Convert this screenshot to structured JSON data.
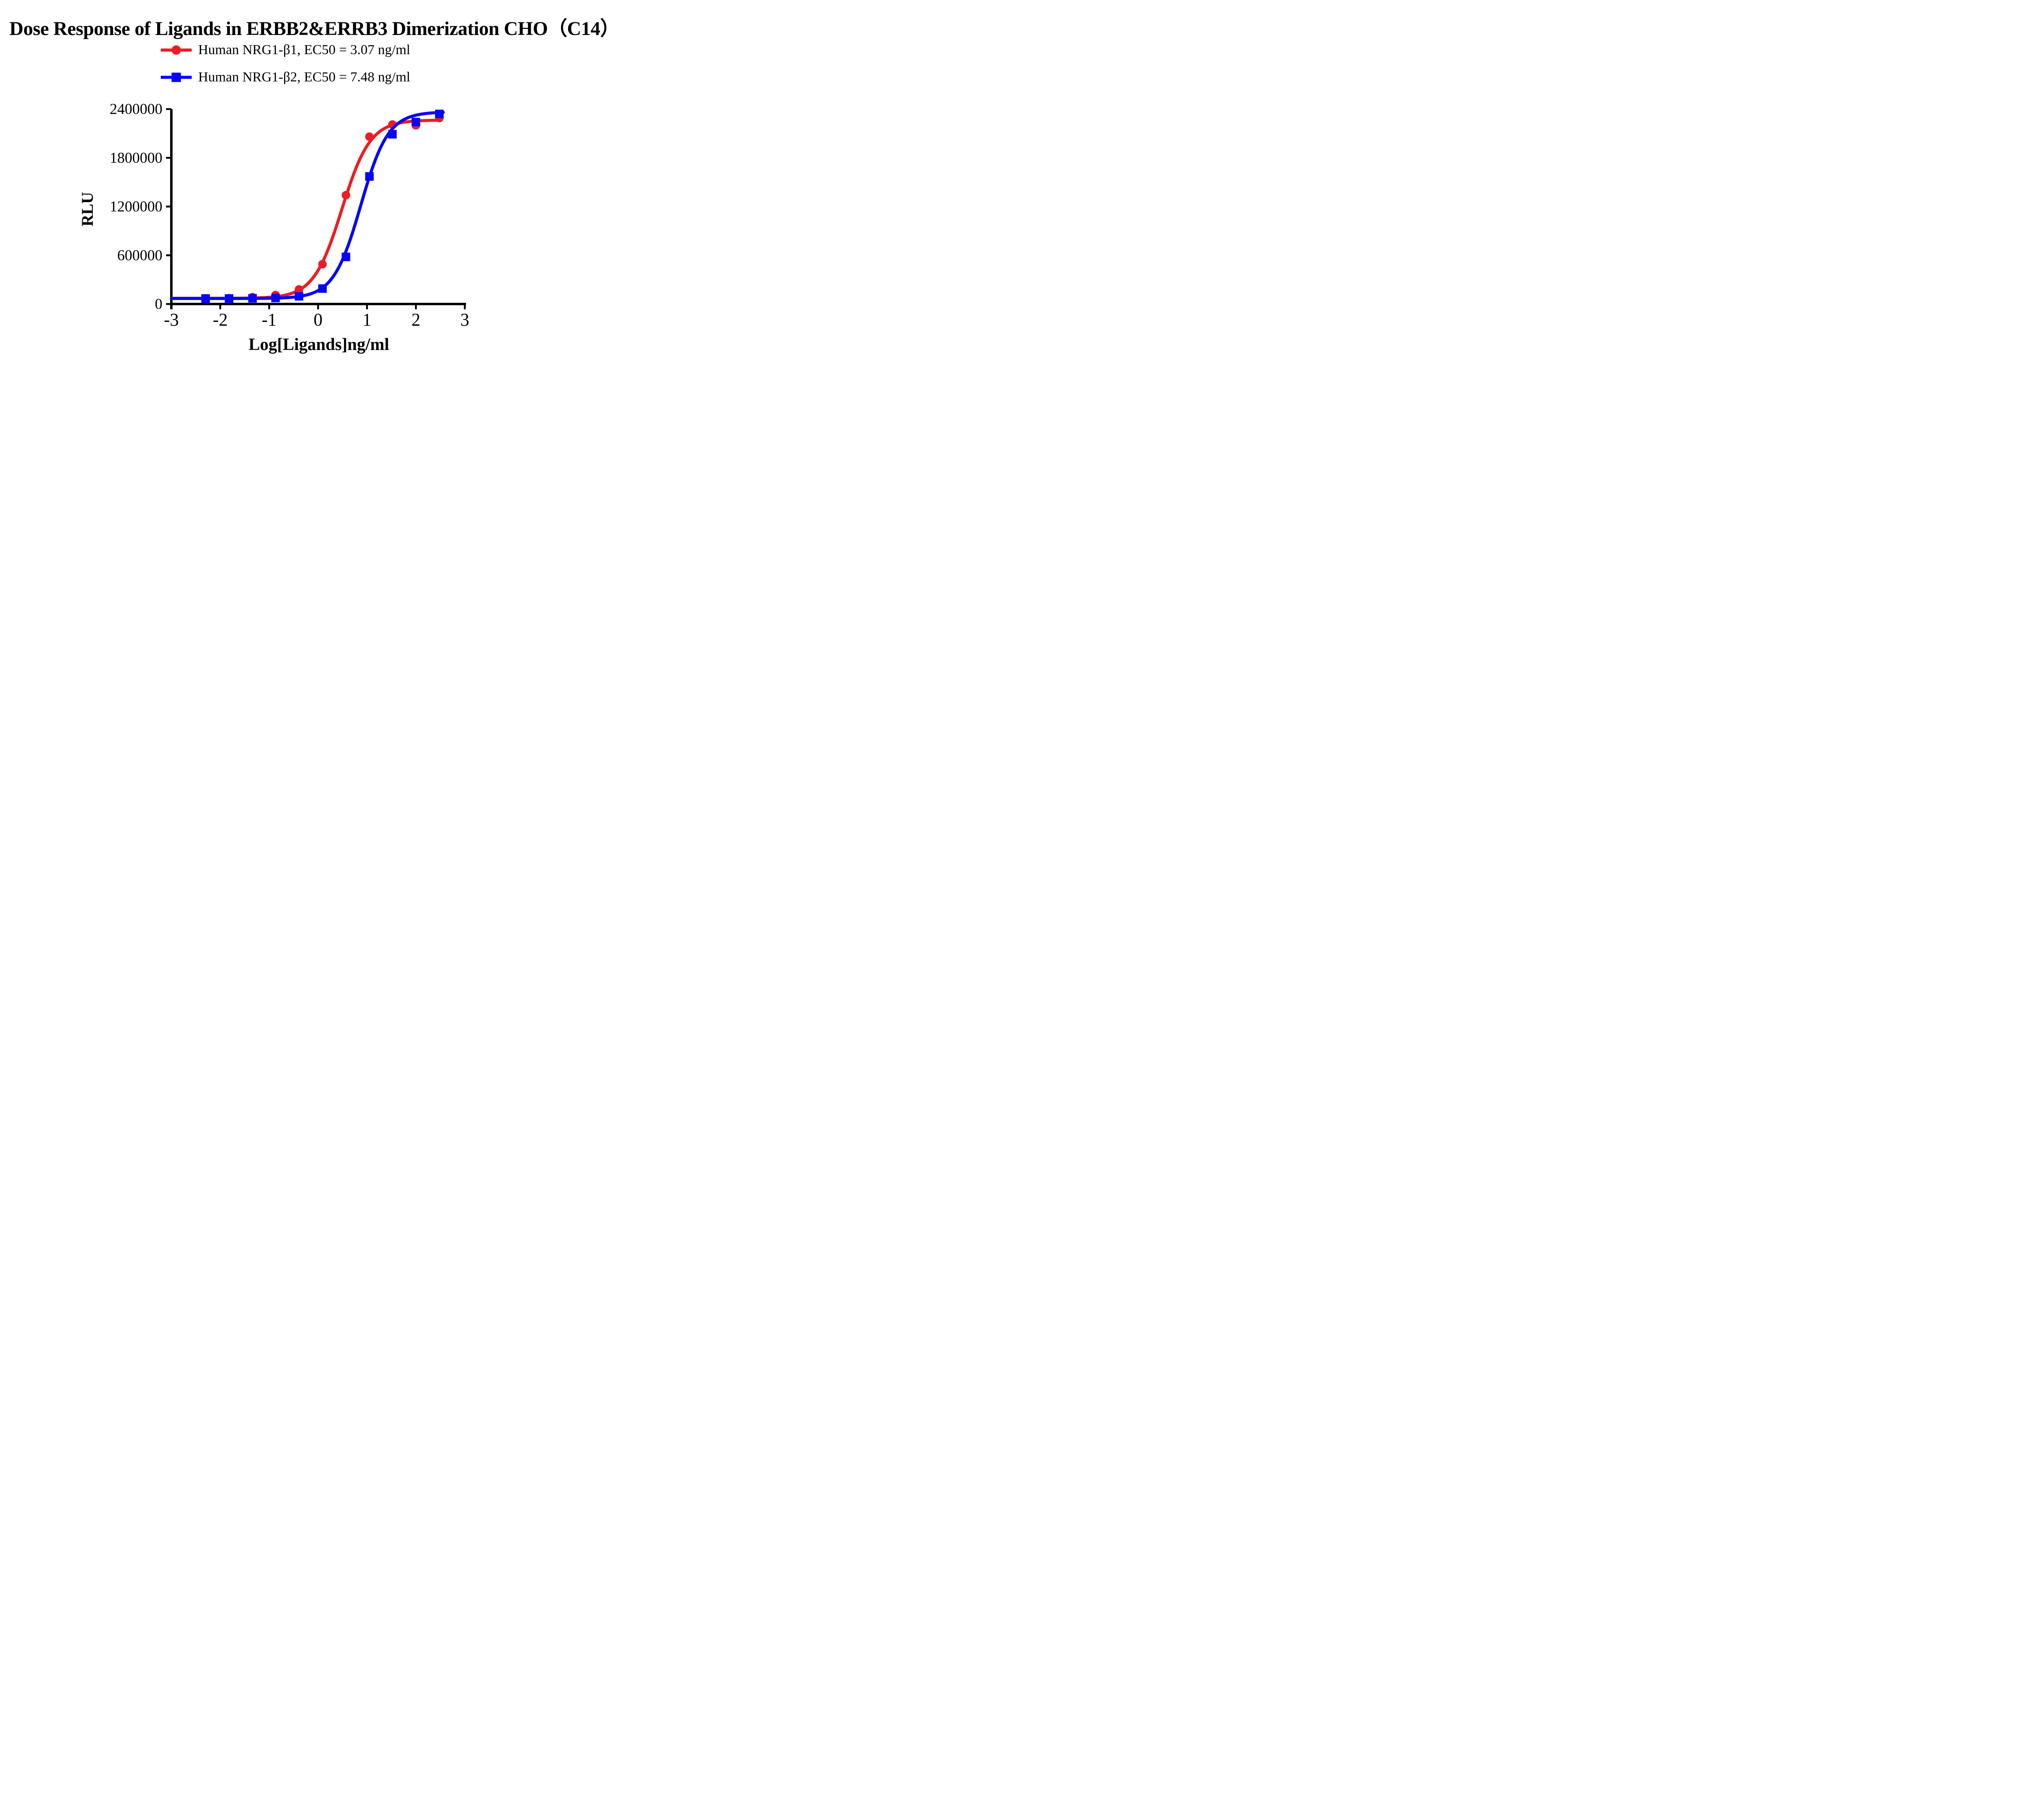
{
  "title": "Dose Response of Ligands in ERBB2&ERRB3 Dimerization CHO（C14）",
  "legend": {
    "items": [
      {
        "label": "Human NRG1-β1, EC50 = 3.07 ng/ml",
        "marker": "circle",
        "color": "#ED1C24"
      },
      {
        "label": "Human NRG1-β2, EC50 = 7.48 ng/ml",
        "marker": "square",
        "color": "#0505F8"
      }
    ]
  },
  "chart_data": {
    "type": "scatter",
    "title": "Dose Response of Ligands in ERBB2&ERRB3 Dimerization CHO（C14）",
    "xlabel": "Log[Ligands]ng/ml",
    "ylabel": "RLU",
    "xlim": [
      -3,
      3
    ],
    "ylim": [
      0,
      2400000
    ],
    "x_ticks": [
      -3,
      -2,
      -1,
      0,
      1,
      2,
      3
    ],
    "y_ticks": [
      0,
      600000,
      1200000,
      1800000,
      2400000
    ],
    "grid": false,
    "legend_position": "top-center",
    "axis_color": "#000000",
    "series": [
      {
        "name": "Human NRG1-β1",
        "ec50_label": "EC50 = 3.07 ng/ml",
        "ec50_ng_ml": 3.07,
        "color": "#ED1C24",
        "marker": "circle",
        "x": [
          -2.3,
          -1.82,
          -1.34,
          -0.87,
          -0.39,
          0.09,
          0.57,
          1.05,
          1.52,
          2.0,
          2.48
        ],
        "y": [
          70000,
          72000,
          85000,
          110000,
          180000,
          490000,
          1340000,
          2060000,
          2210000,
          2200000,
          2290000
        ],
        "fit_4pl": {
          "bottom": 70000,
          "top": 2265000,
          "logEC50": 0.487,
          "hill": 1.5,
          "x_start": -3.0,
          "x_end": 2.52
        }
      },
      {
        "name": "Human NRG1-β2",
        "ec50_label": "EC50 = 7.48 ng/ml",
        "ec50_ng_ml": 7.48,
        "color": "#0505F8",
        "marker": "square",
        "x": [
          -2.3,
          -1.82,
          -1.34,
          -0.87,
          -0.39,
          0.09,
          0.57,
          1.05,
          1.52,
          2.0,
          2.48
        ],
        "y": [
          68000,
          68000,
          70000,
          75000,
          95000,
          190000,
          580000,
          1570000,
          2090000,
          2240000,
          2340000
        ],
        "fit_4pl": {
          "bottom": 68000,
          "top": 2365000,
          "logEC50": 0.874,
          "hill": 1.55,
          "x_start": -3.0,
          "x_end": 2.56
        }
      }
    ]
  }
}
